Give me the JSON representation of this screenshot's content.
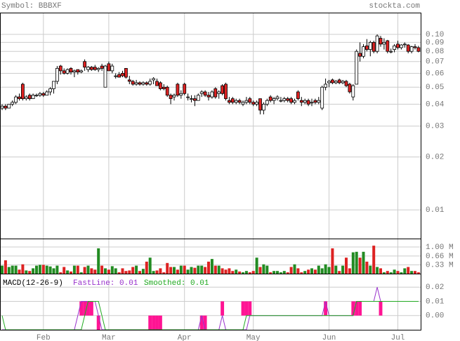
{
  "chart_data": {
    "type": "candlestick",
    "title": "Symbol: BBBXF",
    "source": "stockta.com",
    "log_scale": true,
    "grid": true,
    "up_color": "#ffffff",
    "down_color": "#dd2222",
    "ylim": [
      0.00686,
      0.133
    ],
    "yticks": [
      {
        "value": 0.1,
        "label": "0.10"
      },
      0.09,
      0.08,
      0.07,
      0.06,
      0.05,
      0.04,
      0.03,
      0.02,
      0.01
    ],
    "categories": [
      null,
      null,
      null,
      null,
      null,
      null,
      null,
      null,
      null,
      null,
      null,
      null,
      "Feb",
      null,
      null,
      null,
      null,
      null,
      null,
      null,
      null,
      null,
      null,
      null,
      null,
      null,
      null,
      null,
      null,
      null,
      null,
      "Mar",
      null,
      null,
      null,
      null,
      null,
      null,
      null,
      null,
      null,
      null,
      null,
      null,
      null,
      null,
      null,
      null,
      null,
      null,
      null,
      null,
      null,
      "Apr",
      null,
      null,
      null,
      null,
      null,
      null,
      null,
      null,
      null,
      null,
      null,
      null,
      null,
      null,
      null,
      null,
      null,
      null,
      null,
      "May",
      null,
      null,
      null,
      null,
      null,
      null,
      null,
      null,
      null,
      null,
      null,
      null,
      null,
      null,
      null,
      null,
      null,
      null,
      null,
      null,
      null,
      "Jun",
      null,
      null,
      null,
      null,
      null,
      null,
      null,
      null,
      null,
      null,
      null,
      null,
      null,
      null,
      null,
      null,
      null,
      null,
      null,
      "Jul",
      null,
      null,
      null,
      null,
      null,
      null
    ],
    "open": [
      0.038,
      0.039,
      0.038,
      0.04,
      0.041,
      0.044,
      0.052,
      0.043,
      0.045,
      0.043,
      0.045,
      0.045,
      0.046,
      0.045,
      0.047,
      0.049,
      0.054,
      0.066,
      0.062,
      0.06,
      0.064,
      0.061,
      0.063,
      0.061,
      0.07,
      0.063,
      0.065,
      0.065,
      0.063,
      0.066,
      0.05,
      0.068,
      0.062,
      0.058,
      0.059,
      0.06,
      0.064,
      0.055,
      0.054,
      0.052,
      0.053,
      0.052,
      0.053,
      0.052,
      0.055,
      0.054,
      0.053,
      0.05,
      0.05,
      0.045,
      0.044,
      0.052,
      0.045,
      0.052,
      0.044,
      0.043,
      0.043,
      0.042,
      0.046,
      0.047,
      0.045,
      0.044,
      0.049,
      0.046,
      0.051,
      0.052,
      0.042,
      0.043,
      0.041,
      0.042,
      0.04,
      0.041,
      0.043,
      0.041,
      0.04,
      0.043,
      0.037,
      0.04,
      0.044,
      0.042,
      0.043,
      0.042,
      0.042,
      0.043,
      0.043,
      0.041,
      0.047,
      0.042,
      0.041,
      0.042,
      0.041,
      0.042,
      0.041,
      0.038,
      0.05,
      0.053,
      0.055,
      0.053,
      0.055,
      0.053,
      0.054,
      0.052,
      0.044,
      0.052,
      0.078,
      0.075,
      0.086,
      0.082,
      0.09,
      0.08,
      0.095,
      0.088,
      0.092,
      0.08,
      0.082,
      0.088,
      0.084,
      0.088,
      0.087,
      0.08,
      0.085,
      0.084
    ],
    "high": [
      0.04,
      0.04,
      0.04,
      0.042,
      0.045,
      0.046,
      0.053,
      0.045,
      0.046,
      0.046,
      0.046,
      0.047,
      0.047,
      0.048,
      0.05,
      0.054,
      0.066,
      0.067,
      0.064,
      0.064,
      0.065,
      0.063,
      0.063,
      0.063,
      0.072,
      0.066,
      0.066,
      0.067,
      0.065,
      0.068,
      0.067,
      0.07,
      0.068,
      0.06,
      0.061,
      0.062,
      0.064,
      0.058,
      0.055,
      0.055,
      0.054,
      0.054,
      0.054,
      0.056,
      0.057,
      0.056,
      0.054,
      0.052,
      0.051,
      0.046,
      0.046,
      0.053,
      0.048,
      0.053,
      0.046,
      0.045,
      0.045,
      0.046,
      0.048,
      0.048,
      0.047,
      0.048,
      0.05,
      0.048,
      0.052,
      0.053,
      0.044,
      0.044,
      0.043,
      0.043,
      0.042,
      0.044,
      0.044,
      0.042,
      0.042,
      0.043,
      0.041,
      0.043,
      0.045,
      0.044,
      0.045,
      0.044,
      0.044,
      0.044,
      0.044,
      0.043,
      0.048,
      0.044,
      0.043,
      0.043,
      0.043,
      0.043,
      0.044,
      0.051,
      0.056,
      0.055,
      0.056,
      0.055,
      0.056,
      0.055,
      0.055,
      0.053,
      0.052,
      0.082,
      0.09,
      0.088,
      0.094,
      0.092,
      0.092,
      0.1,
      0.098,
      0.095,
      0.093,
      0.083,
      0.088,
      0.092,
      0.088,
      0.09,
      0.088,
      0.086,
      0.088,
      0.086
    ],
    "low": [
      0.037,
      0.037,
      0.038,
      0.039,
      0.04,
      0.042,
      0.042,
      0.042,
      0.042,
      0.043,
      0.044,
      0.044,
      0.044,
      0.045,
      0.045,
      0.046,
      0.052,
      0.059,
      0.059,
      0.059,
      0.059,
      0.057,
      0.059,
      0.06,
      0.062,
      0.061,
      0.062,
      0.062,
      0.061,
      0.062,
      0.05,
      0.062,
      0.06,
      0.056,
      0.057,
      0.057,
      0.056,
      0.052,
      0.051,
      0.051,
      0.051,
      0.051,
      0.051,
      0.051,
      0.052,
      0.051,
      0.048,
      0.048,
      0.044,
      0.04,
      0.042,
      0.044,
      0.043,
      0.045,
      0.042,
      0.041,
      0.039,
      0.042,
      0.044,
      0.044,
      0.042,
      0.043,
      0.043,
      0.043,
      0.045,
      0.042,
      0.04,
      0.04,
      0.04,
      0.04,
      0.039,
      0.04,
      0.04,
      0.039,
      0.039,
      0.035,
      0.035,
      0.039,
      0.041,
      0.04,
      0.042,
      0.041,
      0.041,
      0.041,
      0.04,
      0.04,
      0.042,
      0.039,
      0.04,
      0.039,
      0.039,
      0.04,
      0.04,
      0.037,
      0.048,
      0.05,
      0.052,
      0.052,
      0.052,
      0.052,
      0.05,
      0.046,
      0.042,
      0.052,
      0.07,
      0.073,
      0.08,
      0.075,
      0.078,
      0.078,
      0.085,
      0.082,
      0.078,
      0.078,
      0.079,
      0.082,
      0.082,
      0.084,
      0.078,
      0.078,
      0.082,
      0.079
    ],
    "close": [
      0.039,
      0.038,
      0.04,
      0.041,
      0.044,
      0.043,
      0.043,
      0.044,
      0.043,
      0.045,
      0.045,
      0.046,
      0.045,
      0.047,
      0.049,
      0.054,
      0.064,
      0.062,
      0.06,
      0.063,
      0.061,
      0.062,
      0.061,
      0.062,
      0.065,
      0.065,
      0.063,
      0.063,
      0.064,
      0.064,
      0.066,
      0.062,
      0.066,
      0.058,
      0.057,
      0.058,
      0.057,
      0.054,
      0.052,
      0.053,
      0.052,
      0.053,
      0.052,
      0.054,
      0.056,
      0.051,
      0.049,
      0.049,
      0.045,
      0.043,
      0.045,
      0.045,
      0.046,
      0.046,
      0.044,
      0.043,
      0.042,
      0.045,
      0.047,
      0.045,
      0.044,
      0.047,
      0.044,
      0.047,
      0.046,
      0.043,
      0.041,
      0.041,
      0.042,
      0.041,
      0.041,
      0.042,
      0.041,
      0.04,
      0.041,
      0.037,
      0.04,
      0.042,
      0.042,
      0.043,
      0.044,
      0.042,
      0.043,
      0.042,
      0.041,
      0.042,
      0.043,
      0.041,
      0.042,
      0.04,
      0.041,
      0.041,
      0.042,
      0.05,
      0.052,
      0.054,
      0.053,
      0.054,
      0.053,
      0.054,
      0.051,
      0.047,
      0.051,
      0.08,
      0.075,
      0.085,
      0.082,
      0.09,
      0.08,
      0.098,
      0.088,
      0.09,
      0.08,
      0.08,
      0.086,
      0.084,
      0.087,
      0.088,
      0.08,
      0.085,
      0.084,
      0.08
    ],
    "volume": {
      "type": "bar",
      "up_color": "#228b22",
      "down_color": "#dd2222",
      "ylim": [
        0,
        1.29
      ],
      "yticks": [
        {
          "value": 1,
          "label": "1.00 M"
        },
        {
          "value": 0.66,
          "label": "0.66 M"
        },
        {
          "value": 0.33,
          "label": "0.33 M"
        }
      ],
      "values": [
        0.3,
        0.5,
        0.25,
        0.3,
        0.3,
        0.15,
        0.35,
        0.12,
        0.1,
        0.2,
        0.3,
        0.33,
        0.33,
        0.3,
        0.27,
        0.2,
        0.3,
        0.05,
        0.25,
        0.12,
        0.08,
        0.3,
        0.3,
        0.05,
        0.25,
        0.3,
        0.2,
        0.15,
        0.95,
        0.3,
        0.2,
        0.15,
        0.28,
        0.2,
        0.05,
        0.2,
        0.1,
        0.12,
        0.25,
        0.3,
        0.1,
        0.18,
        0.45,
        0.6,
        0.1,
        0.12,
        0.2,
        0.05,
        0.4,
        0.25,
        0.25,
        0.15,
        0.3,
        0.3,
        0.15,
        0.25,
        0.22,
        0.3,
        0.3,
        0.25,
        0.45,
        0.55,
        0.3,
        0.3,
        0.2,
        0.15,
        0.2,
        0.1,
        0.15,
        0.08,
        0.05,
        0.1,
        0.05,
        0.1,
        0.6,
        0.25,
        0.35,
        0.3,
        0.05,
        0.1,
        0.1,
        0.05,
        0.1,
        0.05,
        0.25,
        0.35,
        0.2,
        0.05,
        0.1,
        0.15,
        0.2,
        0.15,
        0.3,
        0.2,
        0.35,
        0.25,
        0.95,
        0.3,
        0.1,
        0.3,
        0.6,
        0.2,
        0.8,
        0.82,
        0.6,
        0.82,
        0.45,
        0.3,
        1.05,
        0.25,
        0.2,
        0.05,
        0.1,
        0.05,
        0.15,
        0.1,
        0.05,
        0.2,
        0.25,
        0.1,
        0.1,
        0.05
      ]
    },
    "macd": {
      "type": "line",
      "title": "MACD(12-26-9)",
      "ylim": [
        -0.01,
        0.0285
      ],
      "yticks": [
        0.02,
        0.01,
        {
          "value": 0,
          "label": "0.00"
        }
      ],
      "series": [
        {
          "name": "FastLine: 0.01",
          "color": "#9932cc",
          "values": [
            -0.01,
            -0.01,
            -0.01,
            -0.01,
            -0.01,
            -0.01,
            -0.01,
            -0.01,
            -0.01,
            -0.01,
            -0.01,
            -0.01,
            -0.01,
            -0.01,
            -0.01,
            -0.01,
            -0.01,
            -0.01,
            -0.01,
            -0.01,
            -0.01,
            -0.01,
            0,
            0.01,
            0.01,
            0.01,
            0.01,
            0.01,
            0,
            -0.01,
            -0.01,
            -0.01,
            -0.01,
            -0.01,
            -0.01,
            -0.01,
            -0.01,
            -0.01,
            -0.01,
            -0.01,
            -0.01,
            -0.01,
            -0.01,
            -0.01,
            -0.01,
            -0.01,
            -0.01,
            -0.01,
            -0.01,
            -0.01,
            -0.01,
            -0.01,
            -0.01,
            -0.01,
            -0.01,
            -0.01,
            -0.01,
            -0.01,
            0,
            -0.01,
            -0.01,
            -0.01,
            -0.01,
            -0.01,
            0,
            -0.01,
            -0.01,
            -0.01,
            -0.01,
            -0.01,
            -0.01,
            -0.01,
            0,
            0,
            0,
            0,
            0,
            0,
            0,
            0,
            0,
            0,
            0,
            0,
            0,
            0,
            0,
            0,
            0,
            0,
            0,
            0,
            0,
            0,
            0.01,
            0,
            0,
            0,
            0,
            0,
            0,
            0,
            0,
            0.01,
            0.01,
            0.01,
            0.01,
            0.01,
            0.01,
            0.02,
            0.01,
            0.01,
            0.01,
            0.01,
            0.01,
            0.01,
            0.01,
            0.01,
            0.01,
            0.01,
            0.01,
            0.01
          ]
        },
        {
          "name": "Smoothed: 0.01",
          "color": "#22aa22",
          "values": [
            0,
            -0.01,
            -0.01,
            -0.01,
            -0.01,
            -0.01,
            -0.01,
            -0.01,
            -0.01,
            -0.01,
            -0.01,
            -0.01,
            -0.01,
            -0.01,
            -0.01,
            -0.01,
            -0.01,
            -0.01,
            -0.01,
            -0.01,
            -0.01,
            -0.01,
            -0.01,
            -0.01,
            0,
            0.01,
            0.01,
            0.01,
            0.01,
            0,
            -0.01,
            -0.01,
            -0.01,
            -0.01,
            -0.01,
            -0.01,
            -0.01,
            -0.01,
            -0.01,
            -0.01,
            -0.01,
            -0.01,
            -0.01,
            -0.01,
            -0.01,
            -0.01,
            -0.01,
            -0.01,
            -0.01,
            -0.01,
            -0.01,
            -0.01,
            -0.01,
            -0.01,
            -0.01,
            -0.01,
            -0.01,
            -0.01,
            -0.01,
            -0.01,
            -0.01,
            -0.01,
            -0.01,
            -0.01,
            -0.01,
            -0.01,
            -0.01,
            -0.01,
            -0.01,
            -0.01,
            -0.01,
            0,
            0,
            0,
            0,
            0,
            0,
            0,
            0,
            0,
            0,
            0,
            0,
            0,
            0,
            0,
            0,
            0,
            0,
            0,
            0,
            0,
            0,
            0,
            0,
            0,
            0,
            0,
            0,
            0,
            0,
            0,
            0,
            0.01,
            0.01,
            0.01,
            0.01,
            0.01,
            0.01,
            0.01,
            0.01,
            0.01,
            0.01,
            0.01,
            0.01,
            0.01,
            0.01,
            0.01,
            0.01,
            0.01,
            0.01,
            0.01
          ]
        }
      ],
      "histogram": {
        "color": "#ff1493",
        "values": [
          null,
          null,
          null,
          null,
          null,
          null,
          null,
          null,
          null,
          null,
          null,
          null,
          null,
          null,
          null,
          null,
          null,
          null,
          null,
          null,
          null,
          null,
          null,
          0.01,
          0.01,
          0.01,
          0.01,
          null,
          -0.01,
          null,
          null,
          null,
          null,
          null,
          null,
          null,
          null,
          null,
          null,
          null,
          null,
          null,
          null,
          -0.01,
          -0.01,
          -0.01,
          -0.01,
          null,
          null,
          null,
          null,
          null,
          null,
          null,
          null,
          null,
          null,
          null,
          -0.01,
          -0.01,
          null,
          null,
          null,
          null,
          0.01,
          null,
          null,
          null,
          null,
          null,
          0.01,
          0.01,
          0.01,
          null,
          null,
          null,
          null,
          null,
          null,
          null,
          null,
          null,
          null,
          null,
          null,
          null,
          null,
          null,
          null,
          null,
          null,
          null,
          null,
          null,
          0.01,
          null,
          null,
          null,
          null,
          null,
          null,
          null,
          0.01,
          0.01,
          0.01,
          null,
          null,
          null,
          null,
          null,
          0.01,
          null,
          null,
          null,
          null,
          null,
          null,
          null,
          null,
          null,
          null,
          null
        ]
      }
    }
  }
}
